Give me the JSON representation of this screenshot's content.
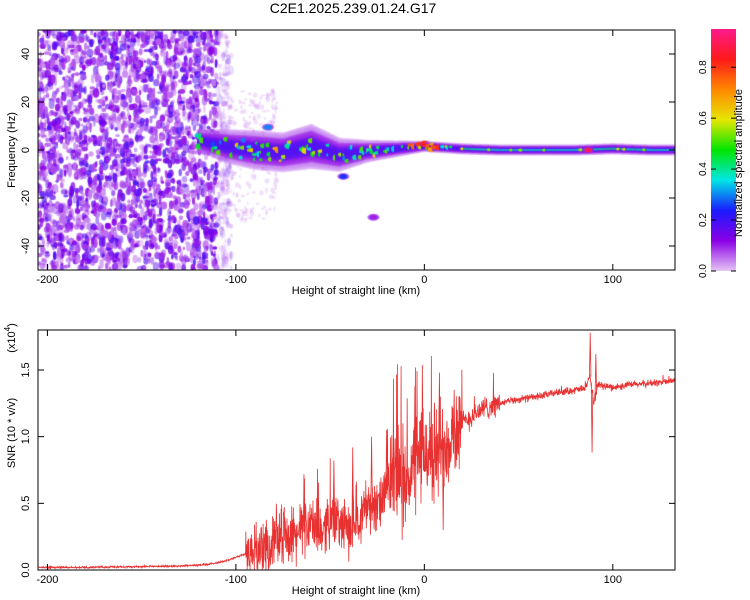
{
  "figure_title": "C2E1.2025.239.01.24.G17",
  "chart_data": [
    {
      "type": "heatmap",
      "title": "C2E1.2025.239.01.24.G17",
      "xlabel": "Height of straight line (km)",
      "ylabel": "Frequency (Hz)",
      "xlim": [
        -205,
        133
      ],
      "ylim": [
        -50,
        50
      ],
      "xticks": [
        -200,
        -100,
        0,
        100
      ],
      "xtick_labels": [
        "-200",
        "-100",
        "0",
        "100"
      ],
      "yticks": [
        -40,
        -20,
        0,
        20,
        40
      ],
      "ytick_labels": [
        "-40",
        "-20",
        "0",
        "20",
        "40"
      ],
      "colorbar": {
        "label": "Normalized spectral amplitude",
        "range": [
          0,
          0.95
        ],
        "ticks": [
          0.0,
          0.2,
          0.4,
          0.6,
          0.8
        ],
        "tick_labels": [
          "0.0",
          "0.2",
          "0.4",
          "0.6",
          "0.8"
        ],
        "colors": [
          "#e6c6f5",
          "#8a00e6",
          "#1a1aff",
          "#00e6e6",
          "#00e600",
          "#e6e600",
          "#ff8800",
          "#ff1a1a",
          "#ff1a8c"
        ]
      },
      "noise_region": {
        "x_range": [
          -205,
          -110
        ],
        "y_range": [
          -50,
          50
        ],
        "amplitude": 0.1
      },
      "signal_band": {
        "x": [
          -120,
          -105,
          -90,
          -75,
          -60,
          -45,
          -30,
          -15,
          0,
          20,
          40,
          60,
          80,
          100,
          120,
          133
        ],
        "center_freq": [
          4,
          1.5,
          0,
          -1,
          1.5,
          -2,
          -0.5,
          0.5,
          1.5,
          0.5,
          0,
          0,
          0,
          0.5,
          0,
          0
        ],
        "width_hz": [
          4,
          6,
          7,
          7,
          8,
          6,
          4,
          3,
          2,
          2,
          2,
          2,
          2,
          2,
          2,
          2
        ],
        "amplitude": [
          0.35,
          0.45,
          0.5,
          0.5,
          0.45,
          0.4,
          0.45,
          0.55,
          0.6,
          0.55,
          0.5,
          0.5,
          0.5,
          0.55,
          0.5,
          0.5
        ]
      },
      "features": [
        {
          "x": -83,
          "y": 9.5,
          "amplitude": 0.3
        },
        {
          "x": -43,
          "y": -11,
          "amplitude": 0.25
        },
        {
          "x": -27,
          "y": -28,
          "amplitude": 0.1
        },
        {
          "x": 87,
          "y": 0,
          "amplitude": 0.9
        }
      ]
    },
    {
      "type": "line",
      "xlabel": "Height of straight line (km)",
      "ylabel": "SNR (10 * v/v)",
      "scale_label": "(x10",
      "scale_exponent": "4",
      "xlim": [
        -205,
        133
      ],
      "ylim": [
        0,
        1.8
      ],
      "xticks": [
        -200,
        -100,
        0,
        100
      ],
      "xtick_labels": [
        "-200",
        "-100",
        "0",
        "100"
      ],
      "yticks": [
        0,
        0.5,
        1.0,
        1.5
      ],
      "ytick_labels": [
        "0.0",
        "0.5",
        "1.0",
        "1.5"
      ],
      "series": [
        {
          "name": "SNR",
          "color": "#e83232",
          "x": [
            -205,
            -180,
            -150,
            -130,
            -115,
            -105,
            -95,
            -85,
            -80,
            -75,
            -70,
            -65,
            -60,
            -55,
            -50,
            -45,
            -40,
            -35,
            -30,
            -25,
            -20,
            -15,
            -10,
            -5,
            0,
            5,
            10,
            15,
            20,
            25,
            30,
            35,
            40,
            50,
            60,
            70,
            80,
            85,
            88,
            90,
            92,
            95,
            100,
            110,
            120,
            133
          ],
          "y": [
            0.02,
            0.02,
            0.025,
            0.03,
            0.04,
            0.07,
            0.12,
            0.17,
            0.2,
            0.28,
            0.25,
            0.3,
            0.35,
            0.28,
            0.4,
            0.35,
            0.3,
            0.4,
            0.5,
            0.45,
            0.6,
            0.75,
            0.65,
            0.8,
            0.9,
            0.85,
            0.95,
            1.05,
            1.1,
            1.15,
            1.2,
            1.23,
            1.25,
            1.28,
            1.3,
            1.33,
            1.35,
            1.36,
            1.45,
            1.25,
            1.38,
            1.38,
            1.37,
            1.39,
            1.4,
            1.42
          ],
          "noise_envelope": [
            {
              "x": [
                -95,
                -20
              ],
              "amplitude": 0.18
            },
            {
              "x": [
                -20,
                20
              ],
              "amplitude": 0.35
            },
            {
              "x": [
                20,
                40
              ],
              "amplitude": 0.08
            },
            {
              "x": [
                40,
                133
              ],
              "amplitude": 0.025
            }
          ],
          "spikes": [
            {
              "x": -48,
              "y": 0.82
            },
            {
              "x": -38,
              "y": 0.92
            },
            {
              "x": -28,
              "y": 1.0
            },
            {
              "x": -20,
              "y": 1.05
            },
            {
              "x": -5,
              "y": 1.38
            },
            {
              "x": 8,
              "y": 1.48
            },
            {
              "x": 10,
              "y": 0.3
            },
            {
              "x": 88,
              "y": 1.78
            },
            {
              "x": 89,
              "y": 0.88
            },
            {
              "x": 91,
              "y": 1.62
            }
          ]
        }
      ]
    }
  ]
}
